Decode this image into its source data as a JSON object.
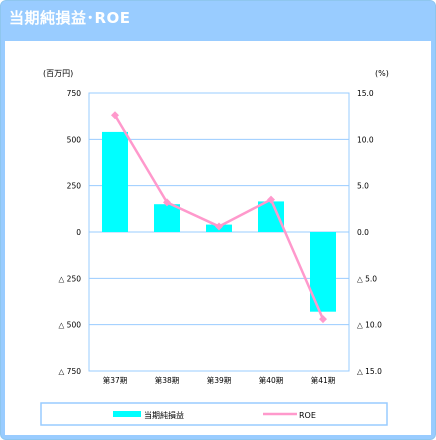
{
  "header": {
    "title": "当期純損益･ROE"
  },
  "colors": {
    "bar": "#00ffff",
    "line": "#ff99cc",
    "grid": "#99ccff",
    "header": "#99ccff",
    "legend_border": "#99ccff"
  },
  "chart_data": {
    "type": "bar+line",
    "categories": [
      "第37期",
      "第38期",
      "第39期",
      "第40期",
      "第41期"
    ],
    "series": [
      {
        "name": "当期純損益",
        "type": "bar",
        "axis": "left",
        "values": [
          540,
          150,
          40,
          165,
          -430
        ]
      },
      {
        "name": "ROE",
        "type": "line",
        "axis": "right",
        "values": [
          12.6,
          3.2,
          0.6,
          3.5,
          -9.4
        ]
      }
    ],
    "y_left": {
      "label": "(百万円)",
      "range": [
        -750,
        750
      ],
      "ticks": [
        750,
        500,
        250,
        0,
        -250,
        -500,
        -750
      ],
      "tick_labels": [
        "750",
        "500",
        "250",
        "0",
        "△ 250",
        "△ 500",
        "△ 750"
      ]
    },
    "y_right": {
      "label": "(%)",
      "range": [
        -15,
        15
      ],
      "ticks": [
        15,
        10,
        5,
        0,
        -5,
        -10,
        -15
      ],
      "tick_labels": [
        "15.0",
        "10.0",
        "5.0",
        "0.0",
        "△ 5.0",
        "△ 10.0",
        "△ 15.0"
      ]
    },
    "grid": true,
    "legend_position": "bottom"
  }
}
